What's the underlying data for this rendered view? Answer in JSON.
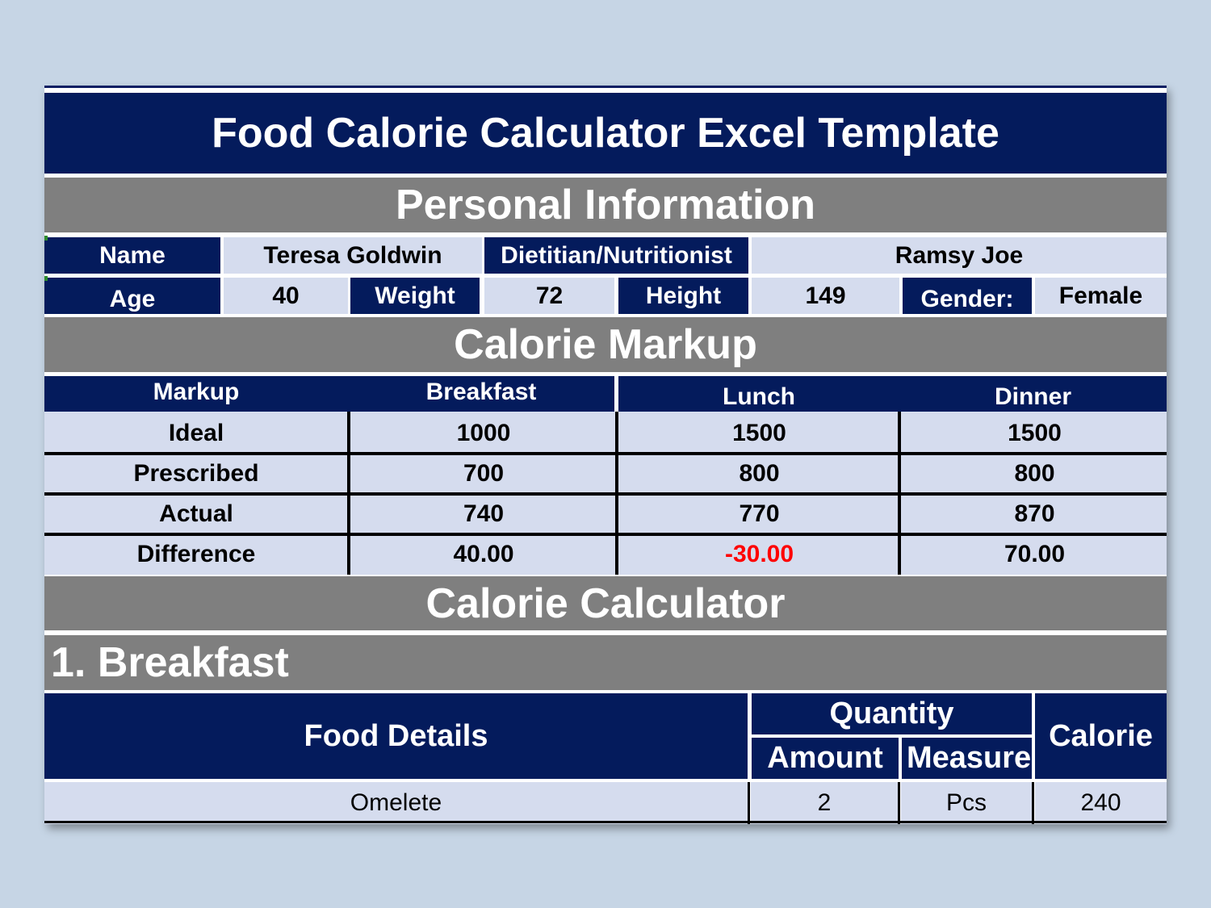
{
  "title": "Food Calorie Calculator Excel Template",
  "personal_information": {
    "heading": "Personal Information",
    "name_label": "Name",
    "name_value": "Teresa Goldwin",
    "dietitian_label": "Dietitian/Nutritionist",
    "dietitian_value": "Ramsy Joe",
    "age_label": "Age",
    "age_value": "40",
    "weight_label": "Weight",
    "weight_value": "72",
    "height_label": "Height",
    "height_value": "149",
    "gender_label": "Gender:",
    "gender_value": "Female"
  },
  "calorie_markup": {
    "heading": "Calorie Markup",
    "columns": [
      "Markup",
      "Breakfast",
      "Lunch",
      "Dinner"
    ],
    "rows": [
      {
        "label": "Ideal",
        "breakfast": "1000",
        "lunch": "1500",
        "dinner": "1500"
      },
      {
        "label": "Prescribed",
        "breakfast": "700",
        "lunch": "800",
        "dinner": "800"
      },
      {
        "label": "Actual",
        "breakfast": "740",
        "lunch": "770",
        "dinner": "870"
      },
      {
        "label": "Difference",
        "breakfast": "40.00",
        "lunch": "-30.00",
        "dinner": "70.00"
      }
    ],
    "negative_color": "#ff0000"
  },
  "calorie_calculator": {
    "heading": "Calorie Calculator",
    "breakfast_heading": "1. Breakfast",
    "headers": {
      "food_details": "Food Details",
      "quantity": "Quantity",
      "amount": "Amount",
      "measure": "Measure",
      "calorie": "Calorie"
    },
    "rows": [
      {
        "food": "Omelete",
        "amount": "2",
        "measure": "Pcs",
        "calorie": "240"
      }
    ]
  },
  "colors": {
    "navy": "#041b5c",
    "gray": "#7f7f7f",
    "light": "#d5dcee",
    "background": "#c6d5e5"
  }
}
